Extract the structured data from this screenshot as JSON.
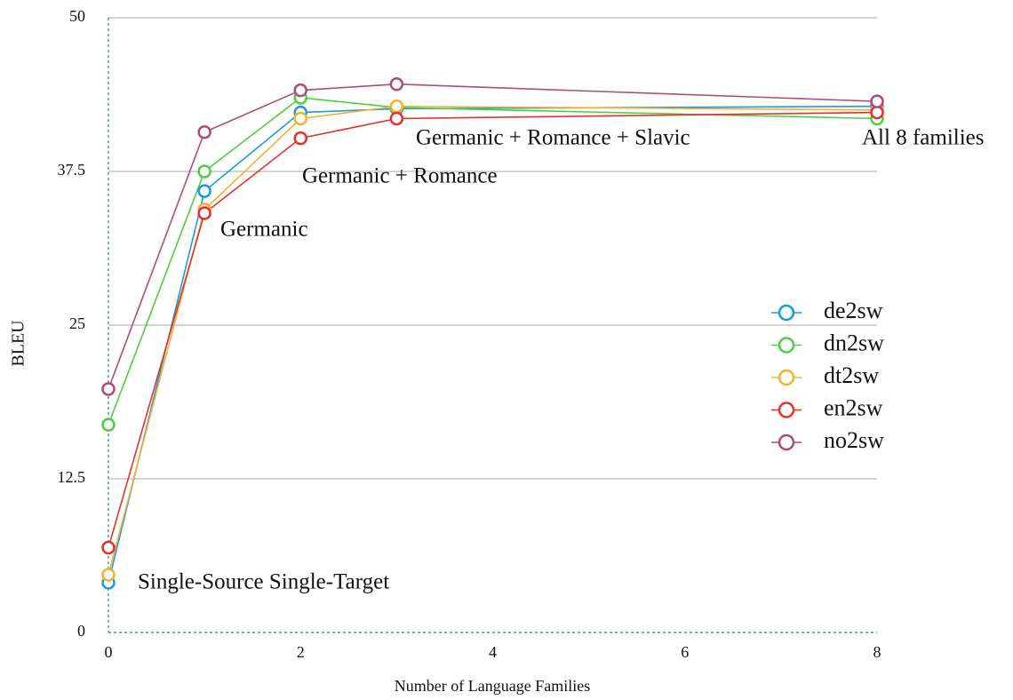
{
  "chart_data": {
    "type": "line",
    "x_label": "Number of Language Families",
    "y_label": "BLEU",
    "x": [
      0,
      1,
      2,
      3,
      8
    ],
    "series": [
      {
        "name": "de2sw",
        "color": "#1a9be0",
        "values": [
          4.05,
          35.9,
          42.3,
          42.6,
          42.8
        ]
      },
      {
        "name": "dn2sw",
        "color": "#4ccf3a",
        "values": [
          16.9,
          37.5,
          43.5,
          42.7,
          41.8
        ]
      },
      {
        "name": "dt2sw",
        "color": "#f5b030",
        "values": [
          4.7,
          34.4,
          41.8,
          42.8,
          42.5
        ]
      },
      {
        "name": "en2sw",
        "color": "#e8302a",
        "values": [
          6.9,
          34.1,
          40.2,
          41.8,
          42.3
        ]
      },
      {
        "name": "no2sw",
        "color": "#b04a7a",
        "values": [
          19.8,
          40.7,
          44.1,
          44.6,
          43.2
        ]
      }
    ],
    "annotations": [
      "Single-Source Single-Target",
      "Germanic",
      "Germanic + Romance",
      "Germanic + Romance + Slavic",
      "All 8 families"
    ],
    "xlim": [
      0,
      8
    ],
    "ylim": [
      0,
      50
    ],
    "xticks": [
      0,
      2,
      4,
      6,
      8
    ],
    "yticks": [
      0,
      12.5,
      25,
      37.5,
      50
    ],
    "grid": true,
    "legend": "right"
  }
}
